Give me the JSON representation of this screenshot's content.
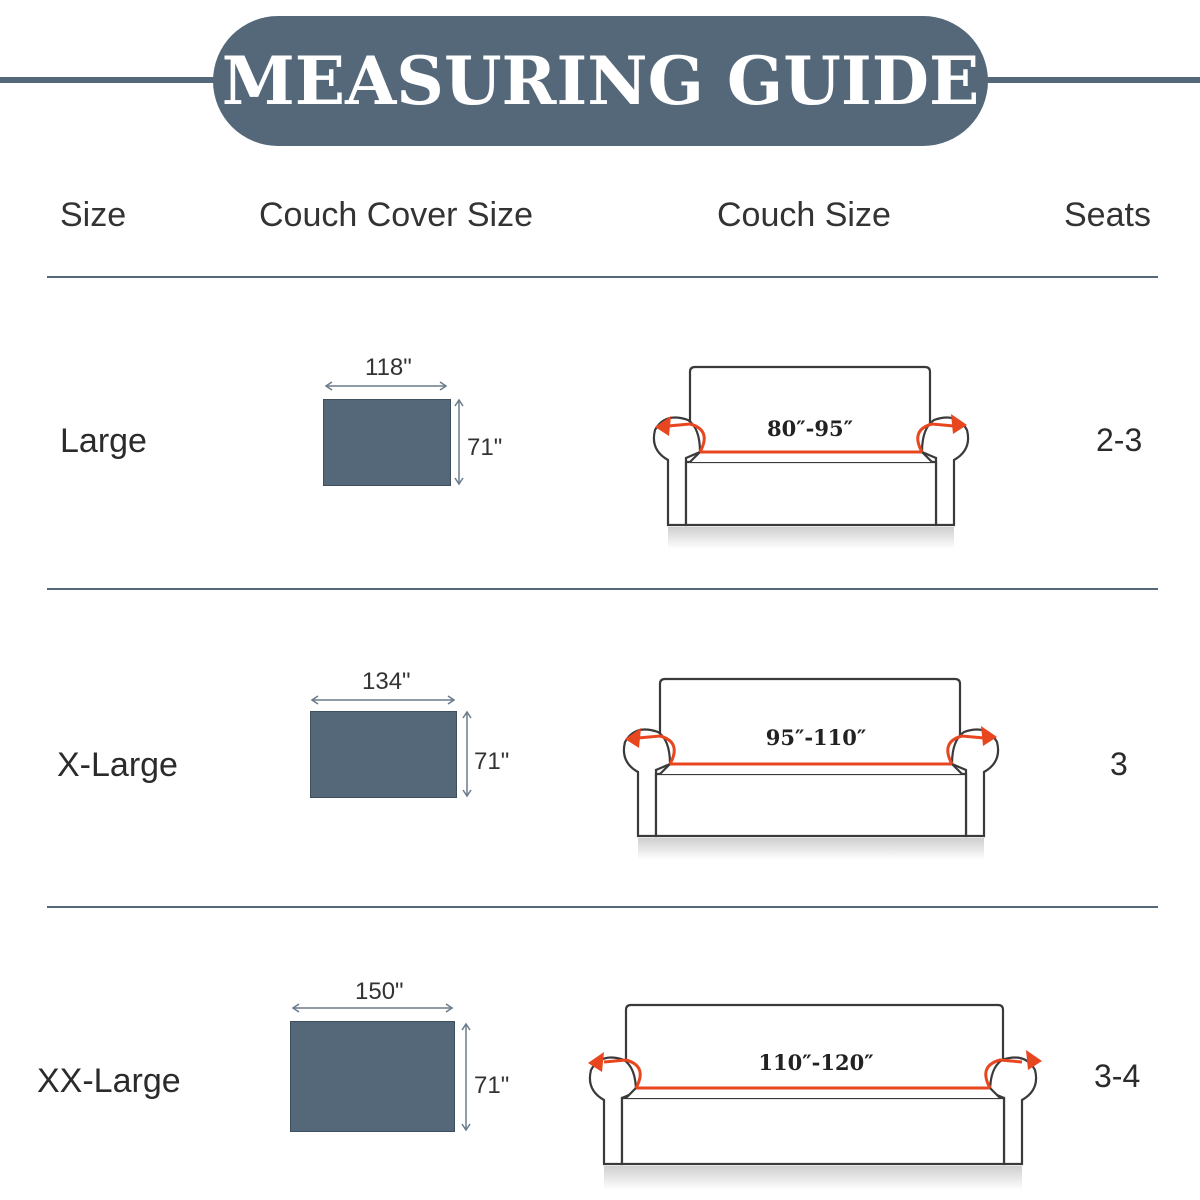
{
  "title": "MEASURING GUIDE",
  "headers": {
    "size": "Size",
    "cover": "Couch Cover Size",
    "couch": "Couch Size",
    "seats": "Seats"
  },
  "rows": [
    {
      "size": "Large",
      "cover_width": "118\"",
      "cover_height": "71\"",
      "couch_range": "80″-95″",
      "seats": "2-3"
    },
    {
      "size": "X-Large",
      "cover_width": "134\"",
      "cover_height": "71\"",
      "couch_range": "95″-110″",
      "seats": "3"
    },
    {
      "size": "XX-Large",
      "cover_width": "150\"",
      "cover_height": "71\"",
      "couch_range": "110″-120″",
      "seats": "3-4"
    }
  ],
  "colors": {
    "accent": "#55687a",
    "arrow": "#e8461f"
  }
}
